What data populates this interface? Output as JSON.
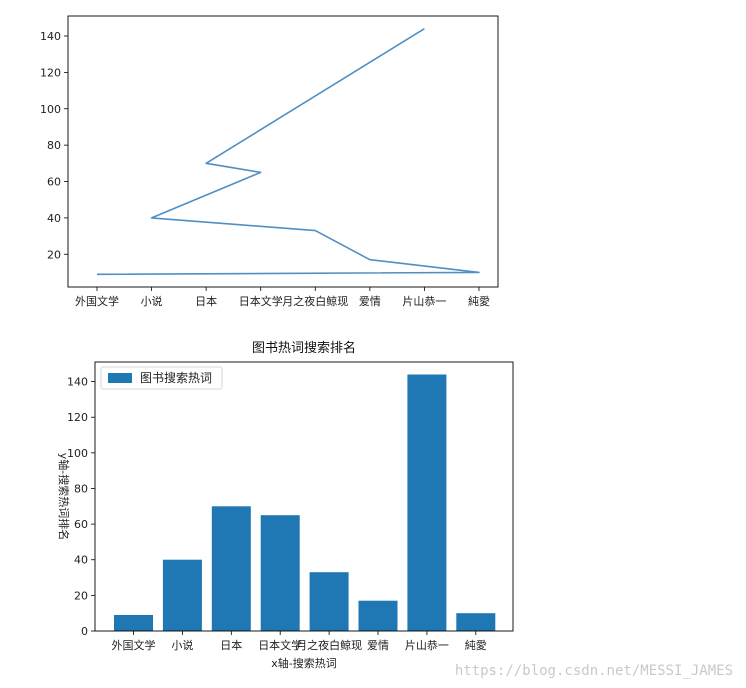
{
  "chart_data": [
    {
      "type": "line",
      "title": "",
      "xlabel": "",
      "ylabel": "",
      "categories": [
        "外国文学",
        "小说",
        "日本",
        "日本文学",
        "月之夜白鲸现",
        "爱情",
        "片山恭一",
        "純愛"
      ],
      "x": [
        0,
        1,
        2,
        3,
        4,
        5,
        6,
        7
      ],
      "y_axis_label_order": [
        "纯爱",
        "日本文学",
        "外国文学",
        "日本",
        "小说",
        "爱情",
        "月之夜白鲸现",
        "片山恭一"
      ],
      "y_axis_values": [
        9,
        10,
        17,
        33,
        40,
        65,
        70,
        144
      ],
      "points_category_index": [
        0,
        7,
        5,
        4,
        1,
        3,
        2,
        6
      ],
      "series": [
        {
          "values": [
            9,
            10,
            17,
            33,
            40,
            65,
            70,
            144
          ],
          "color": "#4f8fc4"
        }
      ],
      "ylim": [
        2,
        151
      ],
      "yticks": [
        20,
        40,
        60,
        80,
        100,
        120,
        140
      ],
      "grid": false
    },
    {
      "type": "bar",
      "title": "图书热词搜索排名",
      "xlabel": "x轴-搜索热词",
      "ylabel": "y轴-搜索热词排名",
      "categories": [
        "外国文学",
        "小说",
        "日本",
        "日本文学",
        "月之夜白鲸现",
        "爱情",
        "片山恭一",
        "純愛"
      ],
      "series": [
        {
          "name": "图书搜索热词",
          "values": [
            9,
            40,
            70,
            65,
            33,
            17,
            144,
            10
          ],
          "color": "#1f77b4"
        }
      ],
      "ylim": [
        0,
        151
      ],
      "yticks": [
        0,
        20,
        40,
        60,
        80,
        100,
        120,
        140
      ],
      "legend": "top-left",
      "grid": false
    }
  ],
  "watermark": "https://blog.csdn.net/MESSI_JAMES"
}
